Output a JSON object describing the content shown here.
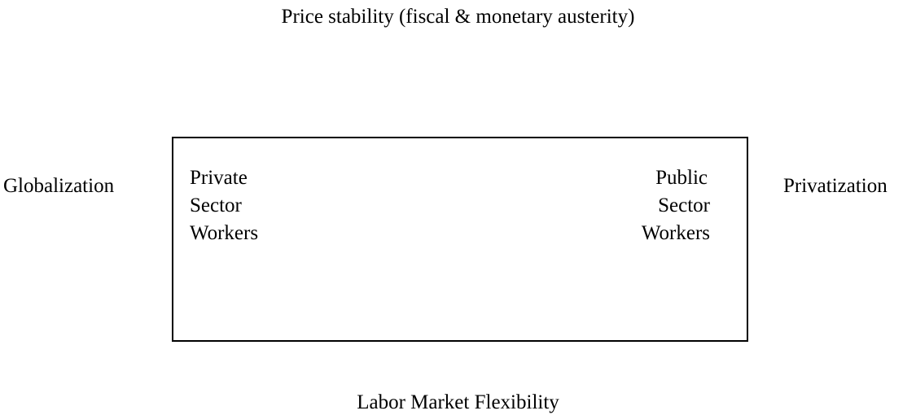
{
  "top": "Price stability (fiscal & monetary austerity)",
  "left": "Globalization",
  "right": "Privatization",
  "bottom": "Labor Market Flexibility",
  "box": {
    "left_lines": [
      "Private",
      "Sector",
      "Workers"
    ],
    "right_lines": [
      "Public",
      "Sector",
      "Workers"
    ]
  }
}
